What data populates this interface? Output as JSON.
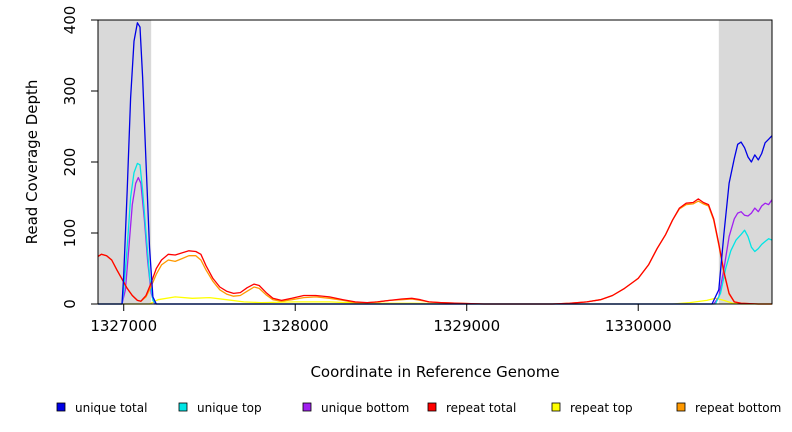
{
  "chart_data": {
    "type": "line",
    "title": "",
    "xlabel": "Coordinate in Reference Genome",
    "ylabel": "Read Coverage Depth",
    "xlim": [
      1326850,
      1330780
    ],
    "ylim": [
      0,
      400
    ],
    "xticks": [
      1327000,
      1328000,
      1329000,
      1330000
    ],
    "xtick_labels": [
      "1327000",
      "1328000",
      "1329000",
      "1330000"
    ],
    "yticks": [
      0,
      100,
      200,
      300,
      400
    ],
    "ytick_labels": [
      "0",
      "100",
      "200",
      "300",
      "400"
    ],
    "grid": false,
    "legend_position": "bottom",
    "shaded_regions": [
      {
        "x0": 1326850,
        "x1": 1327160,
        "color": "#d9d9d9"
      },
      {
        "x0": 1330470,
        "x1": 1330780,
        "color": "#d9d9d9"
      }
    ],
    "series": [
      {
        "name": "unique total",
        "color": "#0000e6",
        "points": [
          [
            1326850,
            0
          ],
          [
            1326990,
            0
          ],
          [
            1327000,
            40
          ],
          [
            1327020,
            160
          ],
          [
            1327040,
            290
          ],
          [
            1327060,
            370
          ],
          [
            1327080,
            396
          ],
          [
            1327095,
            390
          ],
          [
            1327110,
            320
          ],
          [
            1327130,
            200
          ],
          [
            1327150,
            80
          ],
          [
            1327170,
            10
          ],
          [
            1327190,
            0
          ],
          [
            1330430,
            0
          ],
          [
            1330470,
            20
          ],
          [
            1330500,
            100
          ],
          [
            1330530,
            170
          ],
          [
            1330560,
            205
          ],
          [
            1330580,
            225
          ],
          [
            1330600,
            228
          ],
          [
            1330620,
            220
          ],
          [
            1330640,
            207
          ],
          [
            1330660,
            200
          ],
          [
            1330680,
            210
          ],
          [
            1330700,
            203
          ],
          [
            1330720,
            212
          ],
          [
            1330740,
            227
          ],
          [
            1330760,
            232
          ],
          [
            1330780,
            237
          ]
        ]
      },
      {
        "name": "unique top",
        "color": "#00e5e5",
        "points": [
          [
            1326850,
            0
          ],
          [
            1326990,
            0
          ],
          [
            1327000,
            20
          ],
          [
            1327020,
            80
          ],
          [
            1327040,
            150
          ],
          [
            1327060,
            185
          ],
          [
            1327080,
            198
          ],
          [
            1327095,
            196
          ],
          [
            1327110,
            160
          ],
          [
            1327130,
            100
          ],
          [
            1327150,
            40
          ],
          [
            1327170,
            5
          ],
          [
            1327190,
            0
          ],
          [
            1330450,
            0
          ],
          [
            1330480,
            15
          ],
          [
            1330510,
            50
          ],
          [
            1330540,
            75
          ],
          [
            1330570,
            90
          ],
          [
            1330600,
            98
          ],
          [
            1330620,
            104
          ],
          [
            1330640,
            95
          ],
          [
            1330660,
            80
          ],
          [
            1330680,
            74
          ],
          [
            1330700,
            78
          ],
          [
            1330720,
            84
          ],
          [
            1330740,
            88
          ],
          [
            1330760,
            92
          ],
          [
            1330780,
            90
          ]
        ]
      },
      {
        "name": "unique bottom",
        "color": "#a020f0",
        "points": [
          [
            1326850,
            0
          ],
          [
            1326990,
            0
          ],
          [
            1327010,
            20
          ],
          [
            1327030,
            80
          ],
          [
            1327050,
            140
          ],
          [
            1327070,
            170
          ],
          [
            1327085,
            178
          ],
          [
            1327100,
            170
          ],
          [
            1327120,
            120
          ],
          [
            1327140,
            60
          ],
          [
            1327160,
            15
          ],
          [
            1327180,
            0
          ],
          [
            1330440,
            0
          ],
          [
            1330470,
            10
          ],
          [
            1330500,
            50
          ],
          [
            1330530,
            95
          ],
          [
            1330560,
            120
          ],
          [
            1330580,
            128
          ],
          [
            1330600,
            130
          ],
          [
            1330620,
            125
          ],
          [
            1330640,
            124
          ],
          [
            1330660,
            128
          ],
          [
            1330680,
            135
          ],
          [
            1330700,
            130
          ],
          [
            1330720,
            138
          ],
          [
            1330740,
            142
          ],
          [
            1330760,
            140
          ],
          [
            1330780,
            147
          ]
        ]
      },
      {
        "name": "repeat total",
        "color": "#ff0000",
        "points": [
          [
            1326850,
            67
          ],
          [
            1326870,
            70
          ],
          [
            1326900,
            68
          ],
          [
            1326930,
            62
          ],
          [
            1326960,
            48
          ],
          [
            1326990,
            35
          ],
          [
            1327020,
            22
          ],
          [
            1327050,
            12
          ],
          [
            1327080,
            5
          ],
          [
            1327100,
            4
          ],
          [
            1327130,
            12
          ],
          [
            1327160,
            30
          ],
          [
            1327190,
            50
          ],
          [
            1327220,
            62
          ],
          [
            1327260,
            70
          ],
          [
            1327300,
            69
          ],
          [
            1327340,
            72
          ],
          [
            1327380,
            75
          ],
          [
            1327420,
            74
          ],
          [
            1327450,
            70
          ],
          [
            1327480,
            54
          ],
          [
            1327520,
            36
          ],
          [
            1327560,
            24
          ],
          [
            1327600,
            18
          ],
          [
            1327640,
            15
          ],
          [
            1327680,
            16
          ],
          [
            1327720,
            23
          ],
          [
            1327760,
            28
          ],
          [
            1327790,
            26
          ],
          [
            1327830,
            16
          ],
          [
            1327870,
            8
          ],
          [
            1327920,
            5
          ],
          [
            1327980,
            8
          ],
          [
            1328050,
            12
          ],
          [
            1328120,
            12
          ],
          [
            1328200,
            10
          ],
          [
            1328280,
            6
          ],
          [
            1328350,
            3
          ],
          [
            1328420,
            2
          ],
          [
            1328480,
            3
          ],
          [
            1328550,
            5
          ],
          [
            1328620,
            7
          ],
          [
            1328680,
            8
          ],
          [
            1328730,
            6
          ],
          [
            1328780,
            3
          ],
          [
            1328850,
            2
          ],
          [
            1328950,
            1
          ],
          [
            1329100,
            0
          ],
          [
            1329300,
            0
          ],
          [
            1329500,
            0
          ],
          [
            1329600,
            1
          ],
          [
            1329700,
            3
          ],
          [
            1329780,
            6
          ],
          [
            1329850,
            12
          ],
          [
            1329920,
            22
          ],
          [
            1330000,
            36
          ],
          [
            1330060,
            55
          ],
          [
            1330110,
            78
          ],
          [
            1330160,
            98
          ],
          [
            1330200,
            118
          ],
          [
            1330240,
            135
          ],
          [
            1330280,
            142
          ],
          [
            1330320,
            143
          ],
          [
            1330350,
            148
          ],
          [
            1330380,
            143
          ],
          [
            1330410,
            140
          ],
          [
            1330440,
            120
          ],
          [
            1330470,
            85
          ],
          [
            1330500,
            45
          ],
          [
            1330530,
            15
          ],
          [
            1330560,
            3
          ],
          [
            1330600,
            1
          ],
          [
            1330700,
            0
          ],
          [
            1330780,
            0
          ]
        ]
      },
      {
        "name": "repeat top",
        "color": "#ffff00",
        "points": [
          [
            1326850,
            0
          ],
          [
            1327150,
            0
          ],
          [
            1327200,
            6
          ],
          [
            1327300,
            10
          ],
          [
            1327400,
            8
          ],
          [
            1327500,
            9
          ],
          [
            1327600,
            6
          ],
          [
            1327700,
            3
          ],
          [
            1327800,
            2
          ],
          [
            1328000,
            3
          ],
          [
            1328200,
            3
          ],
          [
            1328400,
            1
          ],
          [
            1328700,
            1
          ],
          [
            1329000,
            0
          ],
          [
            1330200,
            0
          ],
          [
            1330300,
            2
          ],
          [
            1330400,
            5
          ],
          [
            1330450,
            8
          ],
          [
            1330500,
            5
          ],
          [
            1330550,
            1
          ],
          [
            1330600,
            0
          ],
          [
            1330780,
            0
          ]
        ]
      },
      {
        "name": "repeat bottom",
        "color": "#ff9900",
        "points": [
          [
            1326850,
            67
          ],
          [
            1326870,
            70
          ],
          [
            1326900,
            68
          ],
          [
            1326930,
            62
          ],
          [
            1326960,
            48
          ],
          [
            1326990,
            35
          ],
          [
            1327020,
            22
          ],
          [
            1327050,
            12
          ],
          [
            1327080,
            5
          ],
          [
            1327100,
            4
          ],
          [
            1327130,
            10
          ],
          [
            1327160,
            25
          ],
          [
            1327190,
            42
          ],
          [
            1327220,
            55
          ],
          [
            1327260,
            62
          ],
          [
            1327300,
            60
          ],
          [
            1327340,
            64
          ],
          [
            1327380,
            68
          ],
          [
            1327420,
            68
          ],
          [
            1327450,
            62
          ],
          [
            1327480,
            48
          ],
          [
            1327520,
            32
          ],
          [
            1327560,
            20
          ],
          [
            1327600,
            14
          ],
          [
            1327640,
            11
          ],
          [
            1327680,
            12
          ],
          [
            1327720,
            18
          ],
          [
            1327760,
            24
          ],
          [
            1327790,
            22
          ],
          [
            1327830,
            13
          ],
          [
            1327870,
            6
          ],
          [
            1327920,
            4
          ],
          [
            1327980,
            6
          ],
          [
            1328050,
            9
          ],
          [
            1328120,
            10
          ],
          [
            1328200,
            8
          ],
          [
            1328280,
            5
          ],
          [
            1328350,
            2
          ],
          [
            1328420,
            2
          ],
          [
            1328480,
            3
          ],
          [
            1328550,
            5
          ],
          [
            1328620,
            6
          ],
          [
            1328680,
            7
          ],
          [
            1328730,
            5
          ],
          [
            1328780,
            3
          ],
          [
            1328850,
            2
          ],
          [
            1328950,
            1
          ],
          [
            1329100,
            0
          ],
          [
            1329300,
            0
          ],
          [
            1329500,
            0
          ],
          [
            1329600,
            1
          ],
          [
            1329700,
            3
          ],
          [
            1329780,
            6
          ],
          [
            1329850,
            12
          ],
          [
            1329920,
            22
          ],
          [
            1330000,
            36
          ],
          [
            1330060,
            55
          ],
          [
            1330110,
            78
          ],
          [
            1330160,
            98
          ],
          [
            1330200,
            118
          ],
          [
            1330240,
            134
          ],
          [
            1330280,
            140
          ],
          [
            1330320,
            141
          ],
          [
            1330350,
            145
          ],
          [
            1330380,
            141
          ],
          [
            1330410,
            138
          ],
          [
            1330440,
            118
          ],
          [
            1330470,
            83
          ],
          [
            1330500,
            43
          ],
          [
            1330530,
            14
          ],
          [
            1330560,
            3
          ],
          [
            1330600,
            1
          ],
          [
            1330700,
            0
          ],
          [
            1330780,
            0
          ]
        ]
      }
    ]
  }
}
